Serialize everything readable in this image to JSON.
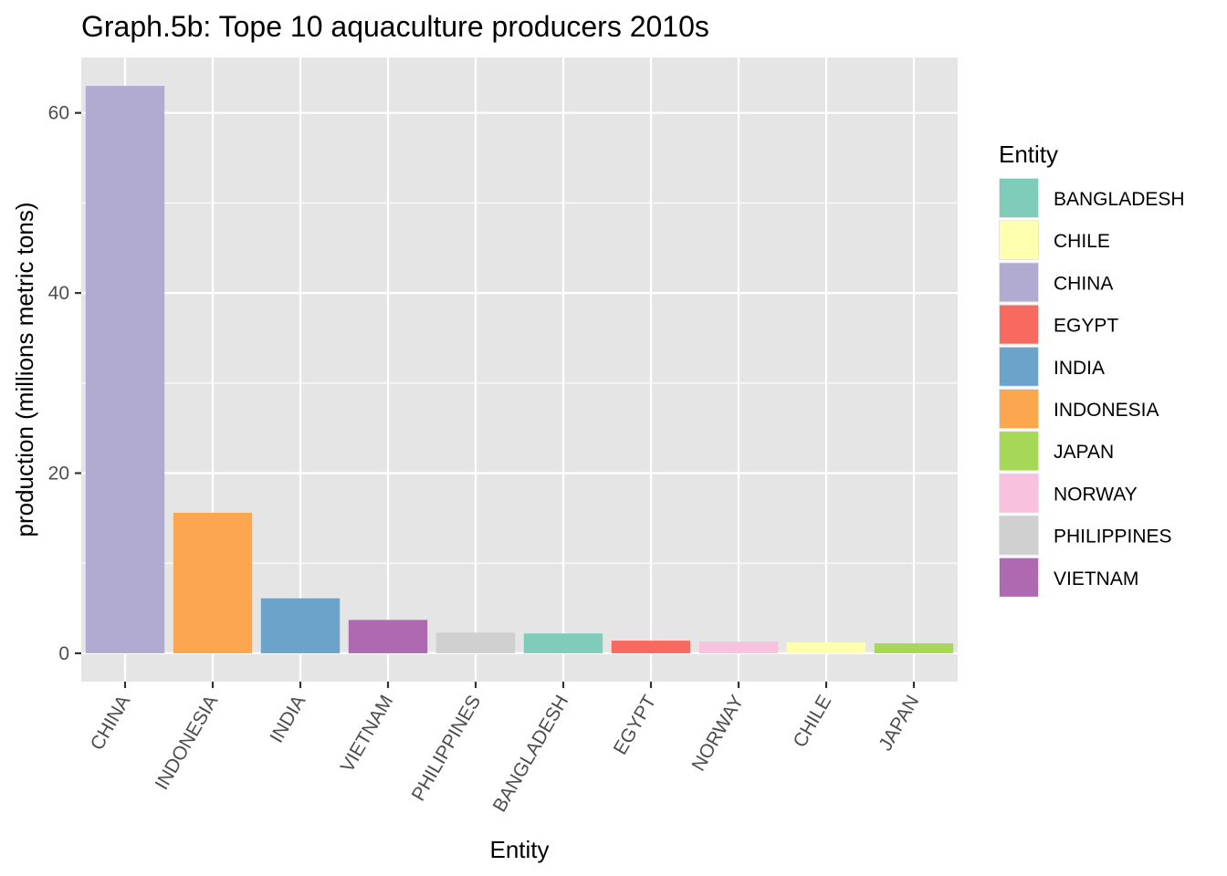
{
  "chart_data": {
    "type": "bar",
    "title": "Graph.5b: Tope 10 aquaculture producers 2010s",
    "xlabel": "Entity",
    "ylabel": "production (millions metric tons)",
    "categories": [
      "CHINA",
      "INDONESIA",
      "INDIA",
      "VIETNAM",
      "PHILIPPINES",
      "BANGLADESH",
      "EGYPT",
      "NORWAY",
      "CHILE",
      "JAPAN"
    ],
    "values": [
      63.0,
      15.6,
      6.1,
      3.7,
      2.3,
      2.2,
      1.4,
      1.3,
      1.2,
      1.1
    ],
    "ylim": [
      -3.15,
      66.15
    ],
    "yticks": [
      0,
      20,
      40,
      60
    ],
    "ytick_labels": [
      "0",
      "20",
      "40",
      "60"
    ],
    "grid": true,
    "legend": {
      "title": "Entity",
      "placement": "right",
      "entries": [
        {
          "label": "BANGLADESH",
          "color": "#7fccbb"
        },
        {
          "label": "CHILE",
          "color": "#ffffb0"
        },
        {
          "label": "CHINA",
          "color": "#b1abd2"
        },
        {
          "label": "EGYPT",
          "color": "#f8695f"
        },
        {
          "label": "INDIA",
          "color": "#6ca3ca"
        },
        {
          "label": "INDONESIA",
          "color": "#fca650"
        },
        {
          "label": "JAPAN",
          "color": "#a6d757"
        },
        {
          "label": "NORWAY",
          "color": "#f8c1de"
        },
        {
          "label": "PHILIPPINES",
          "color": "#d0d0d0"
        },
        {
          "label": "VIETNAM",
          "color": "#ae69b1"
        }
      ]
    },
    "panel_background": "#e5e5e5",
    "grid_color": "#ffffff"
  }
}
